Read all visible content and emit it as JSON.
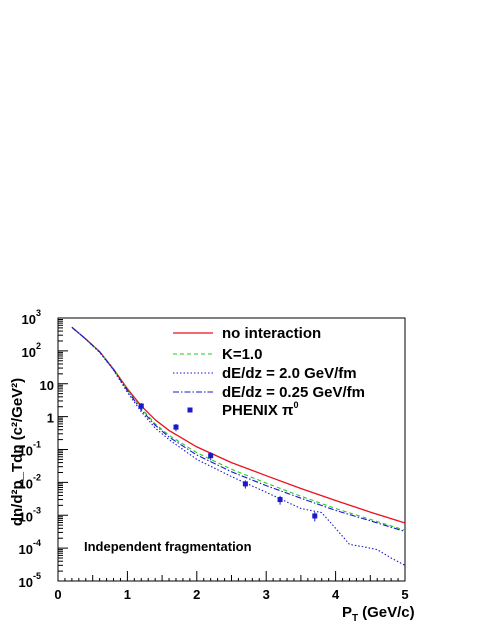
{
  "chart_data": {
    "type": "line",
    "xlabel": "P",
    "xlabel_sub": "T",
    "xlabel_unit": "(GeV/c)",
    "ylabel": "dn/d²p_Tdη (c²/GeV²)",
    "xlim": [
      0,
      5
    ],
    "ylim": [
      1e-05,
      1000.0
    ],
    "yscale": "log",
    "x_ticks": [
      "0",
      "1",
      "2",
      "3",
      "4",
      "5"
    ],
    "y_ticks": [
      {
        "base": "10",
        "exp": "-5"
      },
      {
        "base": "10",
        "exp": "-4"
      },
      {
        "base": "10",
        "exp": "-3"
      },
      {
        "base": "10",
        "exp": "-2"
      },
      {
        "base": "10",
        "exp": "-1"
      },
      {
        "base": "1",
        "exp": ""
      },
      {
        "base": "10",
        "exp": ""
      },
      {
        "base": "10",
        "exp": "2"
      },
      {
        "base": "10",
        "exp": "3"
      }
    ],
    "annotation": "Independent fragmentation",
    "legend_position": "top-right",
    "series": [
      {
        "name": "no interaction",
        "color": "#e8121a",
        "style": "solid",
        "x": [
          0.2,
          0.4,
          0.6,
          0.8,
          1.0,
          1.2,
          1.4,
          1.6,
          2.0,
          2.5,
          3.0,
          3.5,
          4.0,
          4.5,
          5.0
        ],
        "y": [
          520,
          230,
          95,
          28,
          7,
          2.1,
          0.8,
          0.38,
          0.12,
          0.04,
          0.016,
          0.0065,
          0.0028,
          0.00125,
          0.00058
        ]
      },
      {
        "name": "K=1.0",
        "color": "#22cc22",
        "style": "dashed",
        "x": [
          0.2,
          0.4,
          0.6,
          0.8,
          1.0,
          1.2,
          1.4,
          1.6,
          2.0,
          2.5,
          3.0,
          3.5,
          4.0,
          4.5,
          5.0
        ],
        "y": [
          520,
          230,
          95,
          28,
          6.5,
          1.8,
          0.6,
          0.27,
          0.08,
          0.025,
          0.0095,
          0.0038,
          0.0016,
          0.00075,
          0.00035
        ]
      },
      {
        "name": "dE/dz = 2.0 GeV/fm",
        "color": "#1a1acc",
        "style": "dotted",
        "x": [
          0.2,
          0.4,
          0.6,
          0.8,
          1.0,
          1.2,
          1.4,
          1.6,
          2.0,
          2.5,
          3.0,
          3.5,
          3.8,
          4.0,
          4.2,
          4.4,
          4.6,
          4.8,
          5.0
        ],
        "y": [
          520,
          225,
          90,
          26,
          5.5,
          1.4,
          0.45,
          0.2,
          0.05,
          0.015,
          0.005,
          0.0016,
          0.0012,
          0.0004,
          0.00013,
          0.00011,
          9e-05,
          5e-05,
          3e-05
        ]
      },
      {
        "name": "dE/dz = 0.25 GeV/fm",
        "color": "#1a1acc",
        "style": "dashdot",
        "x": [
          0.2,
          0.4,
          0.6,
          0.8,
          1.0,
          1.2,
          1.4,
          1.6,
          2.0,
          2.5,
          3.0,
          3.5,
          4.0,
          4.5,
          5.0
        ],
        "y": [
          520,
          228,
          93,
          27,
          6.2,
          1.6,
          0.55,
          0.24,
          0.068,
          0.021,
          0.008,
          0.0033,
          0.0014,
          0.00068,
          0.00032
        ]
      },
      {
        "name": "PHENIX π⁰",
        "label_base": "PHENIX π",
        "label_sup": "0",
        "color": "#1a1acc",
        "style": "markers",
        "x": [
          1.2,
          1.7,
          2.2,
          2.7,
          3.2,
          3.7
        ],
        "y": [
          2.1,
          0.48,
          0.065,
          0.009,
          0.003,
          0.00095
        ],
        "err": [
          0.5,
          0.12,
          0.018,
          0.0025,
          0.0009,
          0.0003
        ]
      }
    ]
  }
}
